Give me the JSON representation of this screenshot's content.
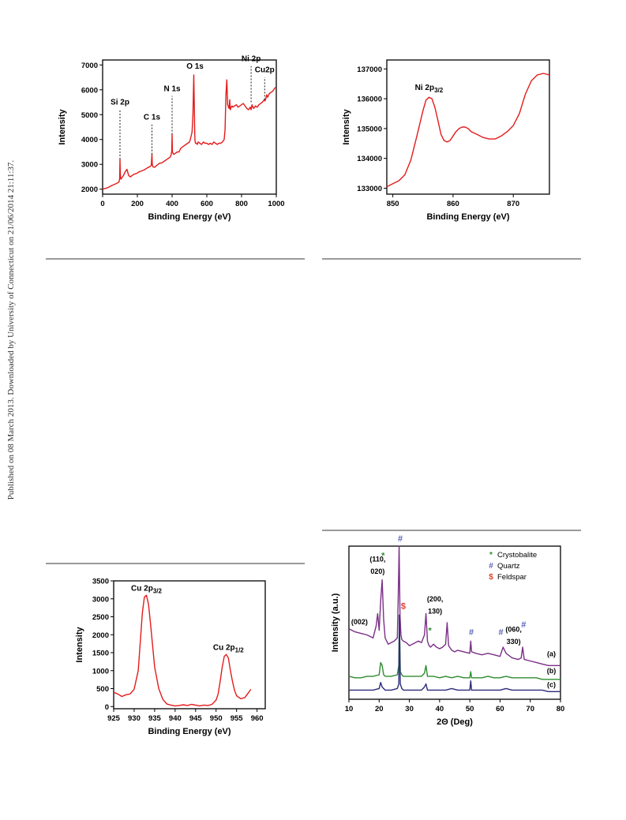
{
  "sidebar_note": "Published on 08 March 2013. Downloaded by University of Connecticut on 21/06/2014 21:11:37.",
  "chart_data": [
    {
      "id": "xps-survey",
      "type": "line",
      "xlabel": "Binding Energy (eV)",
      "ylabel": "Intensity",
      "xlim": [
        0,
        1000
      ],
      "ylim": [
        1800,
        7200
      ],
      "xticks": [
        0,
        200,
        400,
        600,
        800,
        1000
      ],
      "yticks": [
        2000,
        3000,
        4000,
        5000,
        6000,
        7000
      ],
      "line_color": "#e41b1b",
      "series": [
        {
          "x": [
            0,
            10,
            20,
            30,
            40,
            50,
            60,
            70,
            80,
            90,
            95,
            98,
            100,
            102,
            105,
            110,
            120,
            130,
            140,
            150,
            160,
            170,
            180,
            190,
            200,
            210,
            220,
            230,
            240,
            250,
            260,
            270,
            280,
            284,
            286,
            288,
            290,
            300,
            310,
            320,
            330,
            340,
            350,
            360,
            370,
            380,
            390,
            395,
            398,
            400,
            402,
            405,
            410,
            420,
            430,
            440,
            450,
            460,
            470,
            480,
            490,
            500,
            505,
            510,
            515,
            520,
            525,
            530,
            532,
            535,
            540,
            545,
            550,
            560,
            570,
            580,
            590,
            600,
            610,
            620,
            630,
            640,
            650,
            660,
            670,
            680,
            690,
            700,
            705,
            710,
            715,
            720,
            725,
            728,
            732,
            735,
            740,
            745,
            750,
            760,
            770,
            780,
            790,
            800,
            810,
            820,
            830,
            840,
            850,
            855,
            860,
            865,
            870,
            875,
            880,
            890,
            900,
            910,
            920,
            930,
            935,
            940,
            945,
            950,
            960,
            970,
            980,
            990,
            995
          ],
          "y": [
            2000,
            2020,
            2040,
            2060,
            2100,
            2140,
            2170,
            2200,
            2230,
            2270,
            2300,
            2450,
            3200,
            2600,
            2400,
            2450,
            2550,
            2700,
            2800,
            2550,
            2500,
            2550,
            2600,
            2620,
            2650,
            2700,
            2720,
            2750,
            2780,
            2820,
            2870,
            2900,
            2950,
            3400,
            3000,
            2950,
            2900,
            2880,
            2950,
            3000,
            3050,
            3050,
            3100,
            3150,
            3200,
            3250,
            3300,
            3400,
            3550,
            4200,
            3500,
            3450,
            3400,
            3450,
            3500,
            3500,
            3650,
            3700,
            3750,
            3800,
            3850,
            3900,
            4000,
            4150,
            4300,
            5000,
            6600,
            4400,
            3950,
            3850,
            3850,
            3800,
            3900,
            3850,
            3800,
            3900,
            3850,
            3850,
            3800,
            3850,
            3800,
            3900,
            3850,
            3800,
            3850,
            3850,
            3900,
            4000,
            4400,
            5800,
            6400,
            5400,
            5300,
            5250,
            5600,
            5200,
            5300,
            5350,
            5300,
            5350,
            5400,
            5300,
            5350,
            5400,
            5450,
            5350,
            5250,
            5200,
            5300,
            5200,
            5400,
            5300,
            5250,
            5300,
            5350,
            5300,
            5400,
            5450,
            5500,
            5600,
            5550,
            5650,
            5800,
            5700,
            5850,
            5900,
            5950,
            6050,
            6100
          ]
        }
      ],
      "annotations": [
        {
          "label": "Si 2p",
          "x": 100,
          "line_from": 3200,
          "line_to": 5200,
          "text_y": 5400
        },
        {
          "label": "C 1s",
          "x": 284,
          "line_from": 3400,
          "line_to": 4600,
          "text_y": 4800
        },
        {
          "label": "N 1s",
          "x": 400,
          "line_from": 4200,
          "line_to": 5750,
          "text_y": 5950
        },
        {
          "label": "O 1s",
          "x": 532,
          "line_from": 6600,
          "line_to": 6600,
          "text_y": 6850
        },
        {
          "label": "Ni 2p",
          "x": 855,
          "line_from": 5500,
          "line_to": 6950,
          "text_y": 7150
        },
        {
          "label": "Cu2p",
          "x": 933,
          "line_from": 5600,
          "line_to": 6500,
          "text_y": 6700
        }
      ]
    },
    {
      "id": "ni-2p",
      "type": "line",
      "xlabel": "Binding Energy (eV)",
      "ylabel": "Intensity",
      "xlim": [
        849,
        876
      ],
      "ylim": [
        132800,
        137300
      ],
      "xticks": [
        850,
        860,
        870
      ],
      "yticks": [
        133000,
        134000,
        135000,
        136000,
        137000
      ],
      "line_color": "#e41b1b",
      "series": [
        {
          "x": [
            849,
            850,
            851,
            852,
            853,
            854,
            855,
            855.5,
            856,
            856.5,
            857,
            857.5,
            858,
            858.5,
            859,
            859.5,
            860,
            860.5,
            861,
            861.5,
            862,
            862.5,
            863,
            864,
            865,
            866,
            867,
            868,
            869,
            870,
            871,
            872,
            873,
            874,
            875,
            876
          ],
          "y": [
            133050,
            133150,
            133250,
            133450,
            133950,
            134750,
            135600,
            135950,
            136050,
            136000,
            135700,
            135250,
            134800,
            134600,
            134550,
            134600,
            134750,
            134900,
            135000,
            135050,
            135050,
            135000,
            134900,
            134800,
            134700,
            134650,
            134650,
            134750,
            134900,
            135100,
            135500,
            136150,
            136600,
            136800,
            136850,
            136800
          ]
        }
      ],
      "annotations": [
        {
          "label": "Ni 2p",
          "sub": "3/2",
          "x": 856,
          "text_y": 136300
        }
      ]
    },
    {
      "id": "cu-2p",
      "type": "line",
      "xlabel": "Binding Energy (eV)",
      "ylabel": "Intensity",
      "xlim": [
        925,
        962
      ],
      "ylim": [
        -60,
        3500
      ],
      "xticks": [
        925,
        930,
        935,
        940,
        945,
        950,
        955,
        960
      ],
      "yticks": [
        0,
        500,
        1000,
        1500,
        2000,
        2500,
        3000,
        3500
      ],
      "line_color": "#e41b1b",
      "series": [
        {
          "x": [
            925,
            926,
            927,
            928,
            929,
            930,
            931,
            931.5,
            932,
            932.5,
            933,
            933.5,
            934,
            934.5,
            935,
            936,
            937,
            938,
            939,
            940,
            941,
            942,
            943,
            944,
            945,
            946,
            947,
            948,
            949,
            950,
            950.5,
            951,
            951.5,
            952,
            952.5,
            953,
            953.5,
            954,
            954.5,
            955,
            956,
            957,
            958,
            958.5
          ],
          "y": [
            400,
            350,
            280,
            330,
            350,
            480,
            1000,
            1800,
            2600,
            3050,
            3100,
            2850,
            2300,
            1700,
            1100,
            500,
            200,
            70,
            40,
            20,
            30,
            50,
            30,
            60,
            40,
            20,
            40,
            30,
            60,
            180,
            350,
            700,
            1100,
            1400,
            1450,
            1350,
            1000,
            700,
            450,
            300,
            220,
            250,
            400,
            480
          ]
        }
      ],
      "annotations": [
        {
          "label": "Cu 2p",
          "sub": "3/2",
          "x": 933,
          "text_y": 3230
        },
        {
          "label": "Cu 2p",
          "sub": "1/2",
          "x": 953,
          "text_y": 1580
        }
      ]
    },
    {
      "id": "xrd",
      "type": "line",
      "xlabel": "2Θ (Deg)",
      "ylabel": "Intensity (a.u.)",
      "xlim": [
        10,
        80
      ],
      "ylim": [
        0,
        100
      ],
      "xticks": [
        10,
        20,
        30,
        40,
        50,
        60,
        70,
        80
      ],
      "legend_position": "top-right",
      "legend": [
        {
          "symbol": "*",
          "label": "Crystobalite",
          "color": "#2e8b2e"
        },
        {
          "symbol": "#",
          "label": "Quartz",
          "color": "#5a63b8"
        },
        {
          "symbol": "$",
          "label": "Feldspar",
          "color": "#e0402a"
        }
      ],
      "series": [
        {
          "name": "(a)",
          "color": "#7b2f87",
          "x": [
            10,
            12,
            14,
            16,
            18,
            19,
            19.5,
            20,
            20.5,
            21,
            21.5,
            22,
            23,
            24,
            25,
            26,
            26.3,
            26.6,
            26.9,
            27.2,
            27.5,
            28,
            29,
            30,
            31,
            32,
            33,
            34,
            35,
            35.5,
            36,
            36.5,
            37,
            38,
            39,
            40,
            41,
            42,
            42.5,
            43,
            44,
            45,
            46,
            48,
            50,
            50.3,
            50.6,
            52,
            54,
            56,
            58,
            60,
            61,
            62,
            64,
            66,
            67,
            67.5,
            68,
            70,
            72,
            74,
            76,
            78,
            80
          ],
          "y": [
            46,
            44,
            43,
            42,
            40,
            48,
            56,
            45,
            64,
            78,
            52,
            40,
            36,
            37,
            38,
            40,
            65,
            100,
            55,
            42,
            39,
            38,
            37,
            35,
            36,
            37,
            38,
            37,
            42,
            56,
            38,
            35,
            34,
            36,
            34,
            33,
            34,
            36,
            50,
            35,
            32,
            31,
            32,
            31,
            30,
            38,
            31,
            30,
            29,
            30,
            29,
            28,
            34,
            30,
            27,
            26,
            27,
            34,
            26,
            25,
            24,
            23,
            22,
            22,
            22
          ]
        },
        {
          "name": "(b)",
          "color": "#2e8b2e",
          "x": [
            10,
            12,
            14,
            16,
            18,
            20,
            20.5,
            21,
            21.5,
            22,
            24,
            26,
            26.5,
            26.7,
            27,
            27.5,
            28,
            30,
            32,
            34,
            35,
            35.5,
            36,
            38,
            40,
            42,
            44,
            46,
            48,
            50,
            50.3,
            50.6,
            52,
            54,
            56,
            58,
            60,
            62,
            64,
            66,
            68,
            70,
            72,
            74,
            76,
            78,
            80
          ],
          "y": [
            15,
            14,
            14,
            15,
            15,
            16,
            24,
            22,
            16,
            15,
            15,
            16,
            22,
            55,
            18,
            16,
            15,
            15,
            15,
            15,
            17,
            22,
            15,
            15,
            14,
            15,
            14,
            15,
            14,
            14,
            18,
            14,
            14,
            14,
            15,
            14,
            14,
            15,
            14,
            14,
            14,
            14,
            14,
            13,
            13,
            13,
            13
          ]
        },
        {
          "name": "(c)",
          "color": "#2b2b7a",
          "x": [
            10,
            12,
            14,
            16,
            18,
            20,
            20.5,
            21,
            22,
            24,
            26,
            26.5,
            26.7,
            27,
            27.5,
            28,
            30,
            32,
            34,
            35,
            35.5,
            36,
            38,
            40,
            42,
            44,
            46,
            48,
            50,
            50.3,
            50.6,
            52,
            54,
            56,
            58,
            60,
            62,
            64,
            66,
            68,
            70,
            72,
            74,
            76,
            78,
            80
          ],
          "y": [
            6,
            6,
            6,
            6,
            6,
            7,
            11,
            8,
            6,
            6,
            7,
            10,
            55,
            10,
            7,
            6,
            6,
            6,
            6,
            8,
            10,
            6,
            6,
            6,
            6,
            7,
            6,
            6,
            6,
            12,
            6,
            6,
            6,
            6,
            6,
            6,
            7,
            6,
            6,
            6,
            6,
            6,
            6,
            5,
            5,
            5
          ]
        }
      ],
      "annotations": [
        {
          "label": "(002)",
          "x": 13.5,
          "y": 49
        },
        {
          "label": "(110,",
          "x": 19.5,
          "y": 90
        },
        {
          "label": "020)",
          "x": 19.5,
          "y": 82
        },
        {
          "label": "(200,",
          "x": 38.5,
          "y": 64
        },
        {
          "label": "130)",
          "x": 38.5,
          "y": 56
        },
        {
          "label": "(060,",
          "x": 64.5,
          "y": 44
        },
        {
          "label": "330)",
          "x": 64.5,
          "y": 36
        },
        {
          "label": "(a)",
          "x": 77,
          "y": 28
        },
        {
          "label": "(b)",
          "x": 77,
          "y": 17
        },
        {
          "label": "(c)",
          "x": 77,
          "y": 8
        }
      ],
      "markers": [
        {
          "symbol": "*",
          "x": 21.3,
          "y": 92,
          "color": "#2e8b2e"
        },
        {
          "symbol": "#",
          "x": 27,
          "y": 103,
          "color": "#5a63b8"
        },
        {
          "symbol": "$",
          "x": 28,
          "y": 59,
          "color": "#e0402a"
        },
        {
          "symbol": "*",
          "x": 36.8,
          "y": 43,
          "color": "#2e8b2e"
        },
        {
          "symbol": "#",
          "x": 50.5,
          "y": 42,
          "color": "#5a63b8"
        },
        {
          "symbol": "#",
          "x": 60.3,
          "y": 42,
          "color": "#5a63b8"
        },
        {
          "symbol": "#",
          "x": 67.8,
          "y": 47,
          "color": "#5a63b8"
        }
      ]
    }
  ]
}
